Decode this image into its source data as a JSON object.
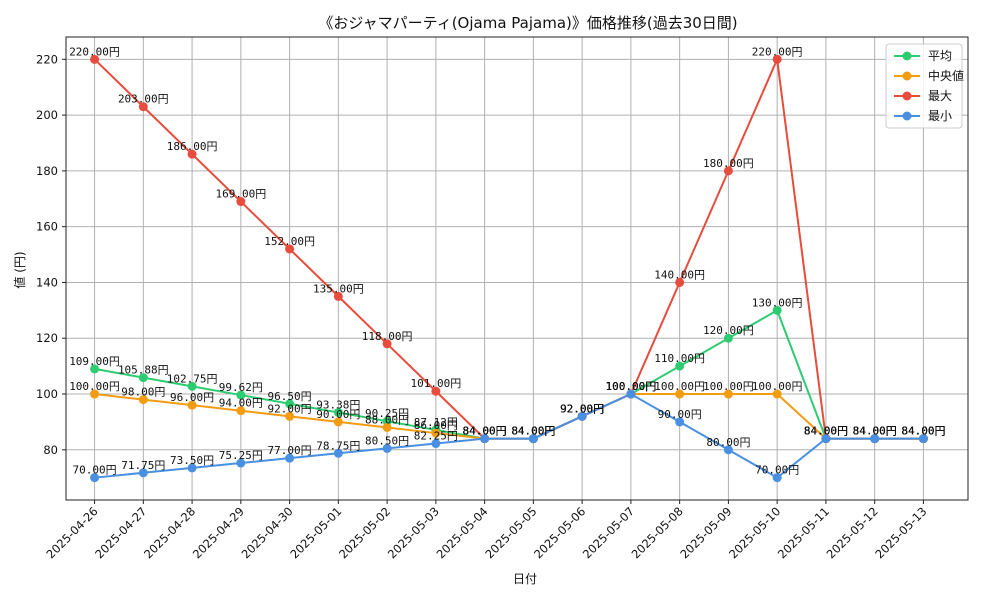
{
  "chart_data": {
    "type": "line",
    "title": "《おジャマパーティ(Ojama Pajama)》価格推移(過去30日間)",
    "xlabel": "日付",
    "ylabel": "値 (円)",
    "ylim": [
      62,
      228
    ],
    "yticks": [
      80,
      100,
      120,
      140,
      160,
      180,
      200,
      220
    ],
    "grid": true,
    "legend_position": "top-right",
    "x": [
      "2025-04-26",
      "2025-04-27",
      "2025-04-28",
      "2025-04-29",
      "2025-04-30",
      "2025-05-01",
      "2025-05-02",
      "2025-05-03",
      "2025-05-04",
      "2025-05-05",
      "2025-05-06",
      "2025-05-07",
      "2025-05-08",
      "2025-05-09",
      "2025-05-10",
      "2025-05-11",
      "2025-05-12",
      "2025-05-13"
    ],
    "series": [
      {
        "name": "平均",
        "color": "#2ecc71",
        "values": [
          109.0,
          105.88,
          102.75,
          99.62,
          96.5,
          93.38,
          90.25,
          87.12,
          84.0,
          84.0,
          92.0,
          100.0,
          110.0,
          120.0,
          130.0,
          84.0,
          84.0,
          84.0
        ],
        "labels": [
          "109.00円",
          "105.88円",
          "102.75円",
          "99.62円",
          "96.50円",
          "93.38円",
          "90.25円",
          "87.12円",
          "84.00円",
          "84.00円",
          "92.00円",
          "100.00円",
          "110.00円",
          "120.00円",
          "130.00円",
          "84.00円",
          "84.00円",
          "84.00円"
        ]
      },
      {
        "name": "中央値",
        "color": "#f39c12",
        "values": [
          100.0,
          98.0,
          96.0,
          94.0,
          92.0,
          90.0,
          88.0,
          86.0,
          84.0,
          84.0,
          92.0,
          100.0,
          100.0,
          100.0,
          100.0,
          84.0,
          84.0,
          84.0
        ],
        "labels": [
          "100.00円",
          "98.00円",
          "96.00円",
          "94.00円",
          "92.00円",
          "90.00円",
          "88.00円",
          "86.00円",
          "84.00円",
          "84.00円",
          "92.00円",
          "100.00円",
          "100.00円",
          "100.00円",
          "100.00円",
          "84.00円",
          "84.00円",
          "84.00円"
        ]
      },
      {
        "name": "最大",
        "color": "#e74c3c",
        "values": [
          220.0,
          203.0,
          186.0,
          169.0,
          152.0,
          135.0,
          118.0,
          101.0,
          84.0,
          84.0,
          92.0,
          100.0,
          140.0,
          180.0,
          220.0,
          84.0,
          84.0,
          84.0
        ],
        "labels": [
          "220.00円",
          "203.00円",
          "186.00円",
          "169.00円",
          "152.00円",
          "135.00円",
          "118.00円",
          "101.00円",
          "84.00円",
          "84.00円",
          "92.00円",
          "100.00円",
          "140.00円",
          "180.00円",
          "220.00円",
          "84.00円",
          "84.00円",
          "84.00円"
        ]
      },
      {
        "name": "最小",
        "color": "#4a90e2",
        "values": [
          70.0,
          71.75,
          73.5,
          75.25,
          77.0,
          78.75,
          80.5,
          82.25,
          84.0,
          84.0,
          92.0,
          100.0,
          90.0,
          80.0,
          70.0,
          84.0,
          84.0,
          84.0
        ],
        "labels": [
          "70.00円",
          "71.75円",
          "73.50円",
          "75.25円",
          "77.00円",
          "78.75円",
          "80.50円",
          "82.25円",
          "84.00円",
          "84.00円",
          "92.00円",
          "100.00円",
          "90.00円",
          "80.00円",
          "70.00円",
          "84.00円",
          "84.00円",
          "84.00円"
        ]
      }
    ]
  }
}
